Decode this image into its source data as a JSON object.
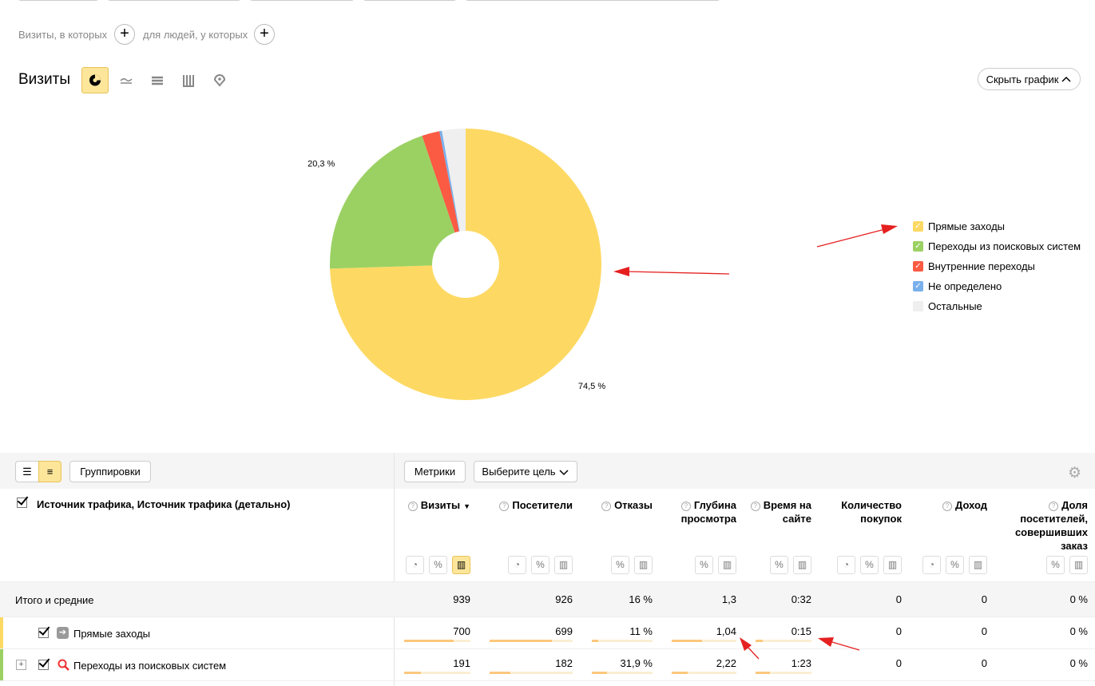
{
  "filters": {
    "visits_label": "Визиты, в которых",
    "people_label": "для людей, у которых"
  },
  "report": {
    "title": "Визиты",
    "hide_chart": "Скрыть график"
  },
  "chart_data": {
    "type": "pie",
    "categories": [
      "Прямые заходы",
      "Переходы из поисковых систем",
      "Внутренние переходы",
      "Не определено",
      "Остальные"
    ],
    "values": [
      74.5,
      20.3,
      2.1,
      0.3,
      2.8
    ],
    "value_labels": [
      "74,5 %",
      "20,3 %",
      null,
      null,
      null
    ],
    "colors": [
      "#fdd963",
      "#9bd163",
      "#fb5a43",
      "#79b0ec",
      "#efefef"
    ]
  },
  "toolbar": {
    "groupings": "Группировки",
    "metrics": "Метрики",
    "goal": "Выберите цель"
  },
  "table": {
    "dimension": "Источник трафика, Источник трафика (детально)",
    "columns": [
      "Визиты",
      "Посетители",
      "Отказы",
      "Глубина просмотра",
      "Время на сайте",
      "Количество покупок",
      "Доход",
      "Доля посетителей, совершивших заказ"
    ],
    "totals": {
      "label": "Итого и средние",
      "cells": [
        "939",
        "926",
        "16 %",
        "1,3",
        "0:32",
        "0",
        "0",
        "0 %"
      ]
    },
    "rows": [
      {
        "label": "Прямые заходы",
        "cells": [
          "700",
          "699",
          "11 %",
          "1,04",
          "0:15",
          "0",
          "0",
          "0 %"
        ]
      },
      {
        "label": "Переходы из поисковых систем",
        "cells": [
          "191",
          "182",
          "31,9 %",
          "2,22",
          "1:23",
          "0",
          "0",
          "0 %"
        ]
      }
    ]
  }
}
